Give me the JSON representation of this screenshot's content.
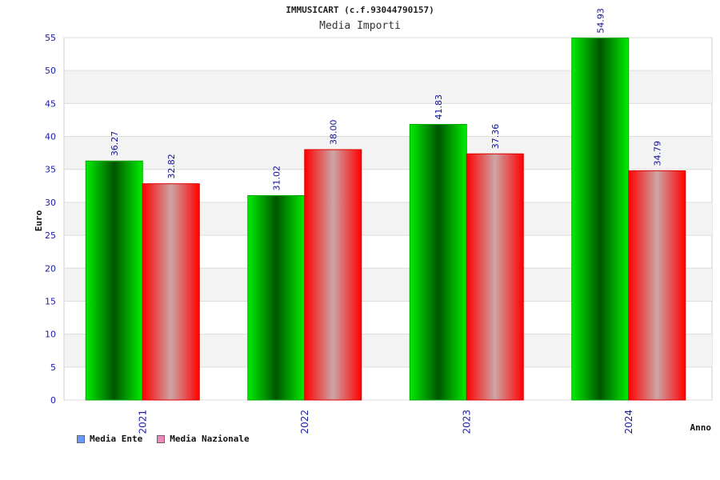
{
  "chart_data": {
    "type": "bar",
    "title": "IMMUSICART (c.f.93044790157)",
    "subtitle": "Media Importi",
    "xlabel": "Anno",
    "ylabel": "Euro",
    "categories": [
      "2021",
      "2022",
      "2023",
      "2024"
    ],
    "ylim": [
      0,
      55
    ],
    "yticks": [
      0,
      5,
      10,
      15,
      20,
      25,
      30,
      35,
      40,
      45,
      50,
      55
    ],
    "grid": "horizontal bands",
    "legend_position": "bottom-left",
    "series": [
      {
        "name": "Media Ente",
        "values": [
          36.27,
          31.02,
          41.83,
          54.93
        ],
        "value_labels": [
          "36.27",
          "31.02",
          "41.83",
          "54.93"
        ],
        "color": "#00cc00",
        "legend_color": "#6699ff"
      },
      {
        "name": "Media Nazionale",
        "values": [
          32.82,
          38.0,
          37.36,
          34.79
        ],
        "value_labels": [
          "32.82",
          "38.00",
          "37.36",
          "34.79"
        ],
        "color": "#ff0000",
        "legend_color": "#ee88bb"
      }
    ]
  }
}
